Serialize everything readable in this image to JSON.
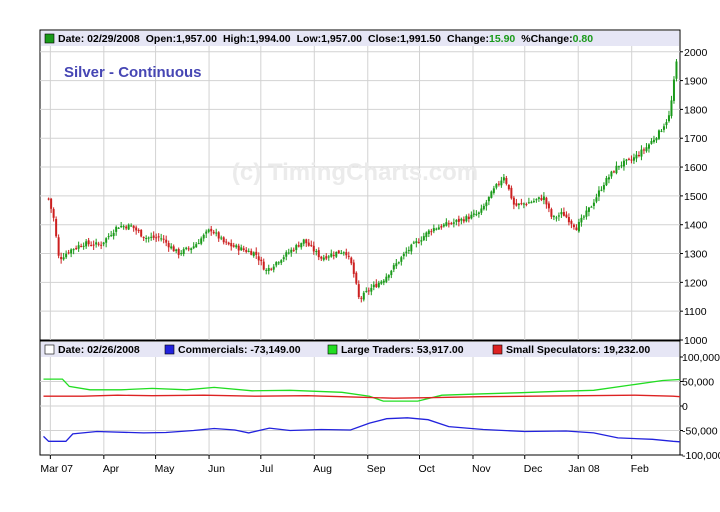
{
  "chart_data": [
    {
      "type": "candlestick",
      "title": "Silver - Continuous",
      "watermark": "(c) TimingCharts.com",
      "header": {
        "date": "Date: 02/29/2008",
        "open": "Open:1,957.00",
        "high": "High:1,994.00",
        "low": "Low:1,957.00",
        "close": "Close:1,991.50",
        "change_label": "Change:",
        "change_value": "15.90",
        "pct_change_label": "%Change:",
        "pct_change_value": "0.80"
      },
      "y_ticks": [
        "2000",
        "1900",
        "1800",
        "1700",
        "1600",
        "1500",
        "1400",
        "1300",
        "1200",
        "1100",
        "1000"
      ],
      "ylim": [
        1000,
        2020
      ],
      "x_ticks": [
        "Mar 07",
        "Apr",
        "May",
        "Jun",
        "Jul",
        "Aug",
        "Sep",
        "Oct",
        "Nov",
        "Dec",
        "Jan 08",
        "Feb"
      ],
      "x_tick_days": [
        1,
        32,
        62,
        93,
        123,
        154,
        185,
        215,
        246,
        276,
        307,
        338
      ],
      "xlim": [
        -5,
        366
      ],
      "close_anchors": [
        [
          0,
          1490
        ],
        [
          3,
          1420
        ],
        [
          6,
          1280
        ],
        [
          12,
          1310
        ],
        [
          20,
          1335
        ],
        [
          30,
          1330
        ],
        [
          40,
          1395
        ],
        [
          48,
          1395
        ],
        [
          56,
          1355
        ],
        [
          65,
          1355
        ],
        [
          75,
          1300
        ],
        [
          84,
          1325
        ],
        [
          94,
          1385
        ],
        [
          102,
          1335
        ],
        [
          112,
          1315
        ],
        [
          120,
          1300
        ],
        [
          126,
          1240
        ],
        [
          134,
          1280
        ],
        [
          148,
          1345
        ],
        [
          158,
          1285
        ],
        [
          165,
          1300
        ],
        [
          172,
          1310
        ],
        [
          176,
          1255
        ],
        [
          180,
          1140
        ],
        [
          186,
          1175
        ],
        [
          194,
          1210
        ],
        [
          208,
          1310
        ],
        [
          222,
          1385
        ],
        [
          236,
          1410
        ],
        [
          250,
          1440
        ],
        [
          258,
          1520
        ],
        [
          264,
          1570
        ],
        [
          270,
          1465
        ],
        [
          280,
          1480
        ],
        [
          287,
          1495
        ],
        [
          292,
          1420
        ],
        [
          298,
          1440
        ],
        [
          306,
          1390
        ],
        [
          314,
          1460
        ],
        [
          322,
          1545
        ],
        [
          330,
          1605
        ],
        [
          338,
          1625
        ],
        [
          346,
          1665
        ],
        [
          354,
          1720
        ],
        [
          360,
          1780
        ],
        [
          364,
          1965
        ]
      ],
      "colors": {
        "up": "#1a9a1a",
        "down": "#cc1f1f",
        "title": "#4646b4",
        "header_bg": "#e6e6f5",
        "change": "#1a9a1a"
      }
    },
    {
      "type": "line",
      "header": {
        "date": "Date: 02/26/2008",
        "series_labels": [
          "Commercials: -73,149.00",
          "Large Traders: 53,917.00",
          "Small Speculators: 19,232.00"
        ]
      },
      "y_ticks": [
        "100,000",
        "50,000",
        "0",
        "-50,000",
        "-100,000"
      ],
      "ylim": [
        -100000,
        100000
      ],
      "series": [
        {
          "name": "Commercials",
          "color": "#2222dd",
          "points": [
            [
              -3,
              -62000
            ],
            [
              0,
              -72000
            ],
            [
              10,
              -72000
            ],
            [
              14,
              -57000
            ],
            [
              28,
              -52000
            ],
            [
              55,
              -55000
            ],
            [
              68,
              -54000
            ],
            [
              84,
              -50000
            ],
            [
              96,
              -46000
            ],
            [
              108,
              -49000
            ],
            [
              116,
              -55000
            ],
            [
              128,
              -45000
            ],
            [
              140,
              -50000
            ],
            [
              158,
              -48000
            ],
            [
              175,
              -49000
            ],
            [
              186,
              -35000
            ],
            [
              196,
              -26000
            ],
            [
              208,
              -24000
            ],
            [
              220,
              -28000
            ],
            [
              232,
              -42000
            ],
            [
              252,
              -48000
            ],
            [
              276,
              -52000
            ],
            [
              300,
              -51000
            ],
            [
              316,
              -55000
            ],
            [
              330,
              -65000
            ],
            [
              350,
              -68000
            ],
            [
              362,
              -72000
            ],
            [
              366,
              -73000
            ]
          ]
        },
        {
          "name": "Large Traders",
          "color": "#22dd22",
          "points": [
            [
              -3,
              55000
            ],
            [
              8,
              55000
            ],
            [
              12,
              40000
            ],
            [
              24,
              33000
            ],
            [
              42,
              33000
            ],
            [
              60,
              36000
            ],
            [
              80,
              33000
            ],
            [
              96,
              38000
            ],
            [
              118,
              31000
            ],
            [
              140,
              32000
            ],
            [
              170,
              28000
            ],
            [
              186,
              20000
            ],
            [
              194,
              10000
            ],
            [
              214,
              10000
            ],
            [
              228,
              22000
            ],
            [
              252,
              25000
            ],
            [
              272,
              27000
            ],
            [
              296,
              30000
            ],
            [
              316,
              32000
            ],
            [
              338,
              43000
            ],
            [
              356,
              52000
            ],
            [
              366,
              54000
            ]
          ]
        },
        {
          "name": "Small Speculators",
          "color": "#dd2222",
          "points": [
            [
              -3,
              20000
            ],
            [
              20,
              20000
            ],
            [
              40,
              22000
            ],
            [
              60,
              21000
            ],
            [
              90,
              22000
            ],
            [
              120,
              20000
            ],
            [
              150,
              21000
            ],
            [
              180,
              18000
            ],
            [
              200,
              16000
            ],
            [
              220,
              17000
            ],
            [
              250,
              19000
            ],
            [
              280,
              20000
            ],
            [
              310,
              21000
            ],
            [
              340,
              22000
            ],
            [
              362,
              20000
            ],
            [
              366,
              19000
            ]
          ]
        }
      ]
    }
  ]
}
